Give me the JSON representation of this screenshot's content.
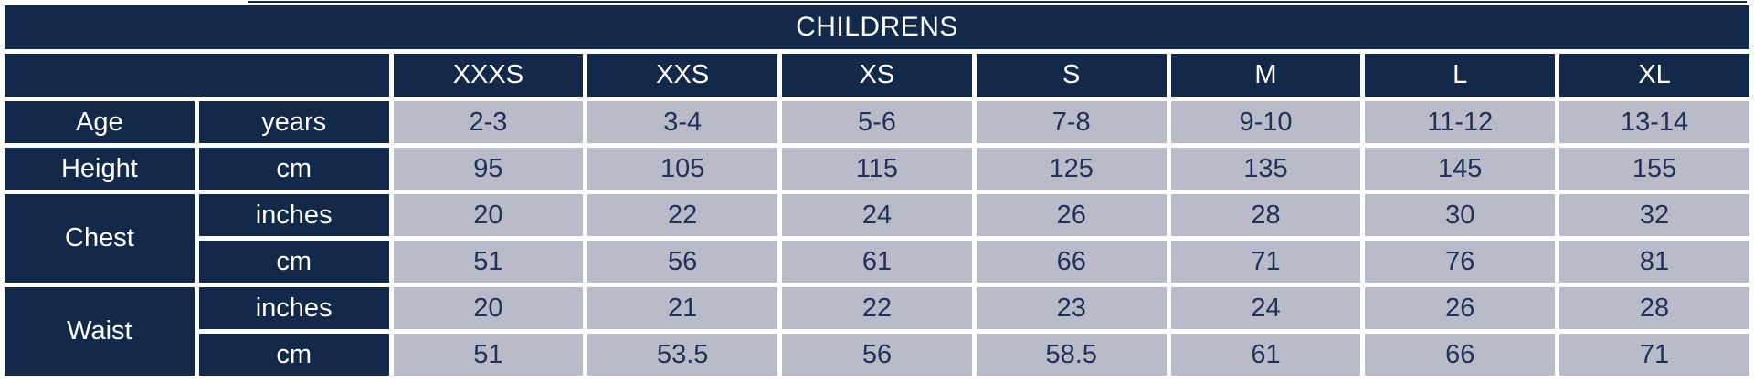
{
  "colors": {
    "navy_header": "#13294a",
    "data_cell_background": "#b9bbc9",
    "data_cell_text": "#21315a",
    "cell_border": "#ffffff",
    "header_text": "#ffffff"
  },
  "chart_data": {
    "type": "table",
    "title": "CHILDRENS",
    "size_headers": [
      "XXXS",
      "XXS",
      "XS",
      "S",
      "M",
      "L",
      "XL"
    ],
    "measurements": [
      {
        "label": "Age",
        "rows": [
          {
            "unit": "years",
            "values": [
              "2-3",
              "3-4",
              "5-6",
              "7-8",
              "9-10",
              "11-12",
              "13-14"
            ]
          }
        ]
      },
      {
        "label": "Height",
        "rows": [
          {
            "unit": "cm",
            "values": [
              "95",
              "105",
              "115",
              "125",
              "135",
              "145",
              "155"
            ]
          }
        ]
      },
      {
        "label": "Chest",
        "rows": [
          {
            "unit": "inches",
            "values": [
              "20",
              "22",
              "24",
              "26",
              "28",
              "30",
              "32"
            ]
          },
          {
            "unit": "cm",
            "values": [
              "51",
              "56",
              "61",
              "66",
              "71",
              "76",
              "81"
            ]
          }
        ]
      },
      {
        "label": "Waist",
        "rows": [
          {
            "unit": "inches",
            "values": [
              "20",
              "21",
              "22",
              "23",
              "24",
              "26",
              "28"
            ]
          },
          {
            "unit": "cm",
            "values": [
              "51",
              "53.5",
              "56",
              "58.5",
              "61",
              "66",
              "71"
            ]
          }
        ]
      }
    ]
  }
}
